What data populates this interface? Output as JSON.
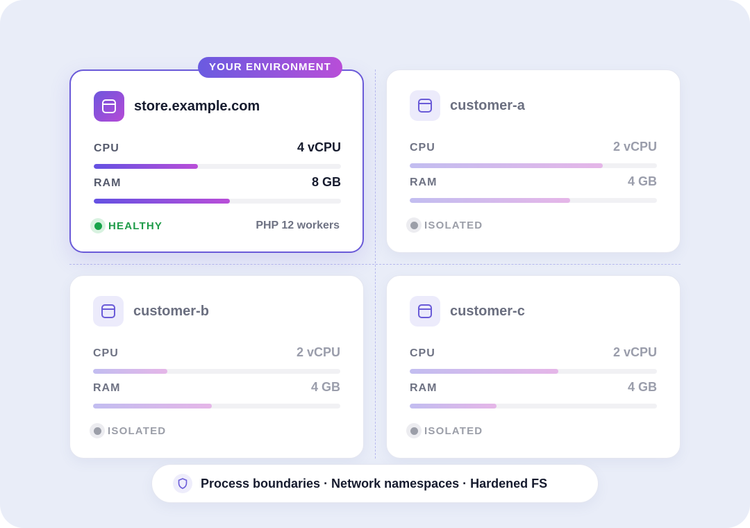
{
  "badge": "YOUR ENVIRONMENT",
  "cards": [
    {
      "name": "store.example.com",
      "cpu_label": "CPU",
      "cpu_value": "4 vCPU",
      "cpu_fill": 0.42,
      "ram_label": "RAM",
      "ram_value": "8 GB",
      "ram_fill": 0.55,
      "status": "HEALTHY",
      "workers": "PHP 12 workers"
    },
    {
      "name": "customer-a",
      "cpu_label": "CPU",
      "cpu_value": "2 vCPU",
      "cpu_fill": 0.78,
      "ram_label": "RAM",
      "ram_value": "4 GB",
      "ram_fill": 0.65,
      "status": "ISOLATED"
    },
    {
      "name": "customer-b",
      "cpu_label": "CPU",
      "cpu_value": "2 vCPU",
      "cpu_fill": 0.3,
      "ram_label": "RAM",
      "ram_value": "4 GB",
      "ram_fill": 0.48,
      "status": "ISOLATED"
    },
    {
      "name": "customer-c",
      "cpu_label": "CPU",
      "cpu_value": "2 vCPU",
      "cpu_fill": 0.6,
      "ram_label": "RAM",
      "ram_value": "4 GB",
      "ram_fill": 0.35,
      "status": "ISOLATED"
    }
  ],
  "footer": "Process boundaries · Network namespaces · Hardened FS",
  "icons": {
    "app": "browser-window-icon",
    "healthy": "green-status-dot-icon",
    "isolated": "gray-status-dot-icon",
    "footer": "shield-icon"
  },
  "colors": {
    "accent_start": "#6451e2",
    "accent_end": "#b94ed8",
    "healthy": "#1e9b48",
    "isolated": "#9b9ea8"
  }
}
